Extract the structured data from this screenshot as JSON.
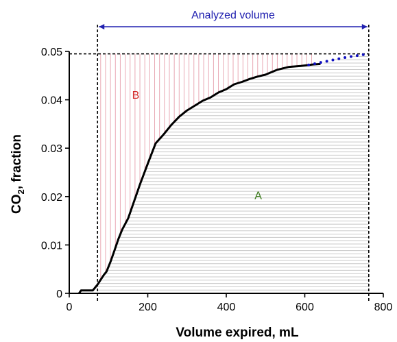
{
  "chart_data": {
    "type": "line",
    "xlabel": "Volume expired, mL",
    "ylabel_main": "CO",
    "ylabel_sub": "2",
    "ylabel_rest": ", fraction",
    "xlim": [
      0,
      800
    ],
    "ylim": [
      0,
      0.05
    ],
    "xticks": [
      0,
      200,
      400,
      600,
      800
    ],
    "xtick_labels": [
      "0",
      "200",
      "400",
      "600",
      "800"
    ],
    "yticks": [
      0,
      0.01,
      0.02,
      0.03,
      0.04,
      0.05
    ],
    "ytick_labels": [
      "0",
      "0.01",
      "0.02",
      "0.03",
      "0.04",
      "0.05"
    ],
    "annotations": {
      "analyzed_volume": "Analyzed volume",
      "region_a": "A",
      "region_b": "B"
    },
    "analyzed_range": [
      72,
      763
    ],
    "plateau_level": 0.0495,
    "colors": {
      "curve": "#000000",
      "extrapolation": "#1010c0",
      "arrow": "#2020b0",
      "region_a_lines": "#c8c8c8",
      "region_b_lines": "#e8a8b4",
      "label_a": "#3a7a1a",
      "label_b": "#d42a2a"
    },
    "series": [
      {
        "style": "solid",
        "x": [
          25,
          30,
          60,
          66,
          72,
          80,
          88,
          95,
          105,
          115,
          125,
          135,
          150,
          165,
          180,
          200,
          220,
          240,
          260,
          280,
          300,
          320,
          340,
          360,
          380,
          400,
          420,
          440,
          460,
          480,
          500,
          530,
          560,
          590,
          620,
          640
        ],
        "y": [
          0.0,
          0.0006,
          0.0006,
          0.0012,
          0.0018,
          0.0028,
          0.0038,
          0.0045,
          0.0065,
          0.0088,
          0.0112,
          0.0132,
          0.0155,
          0.019,
          0.0225,
          0.0268,
          0.031,
          0.0328,
          0.0348,
          0.0365,
          0.0378,
          0.0388,
          0.0398,
          0.0405,
          0.0415,
          0.0422,
          0.0432,
          0.0437,
          0.0443,
          0.0448,
          0.0452,
          0.0462,
          0.0468,
          0.047,
          0.0473,
          0.0474
        ]
      },
      {
        "style": "dotted",
        "x": [
          610,
          640,
          670,
          700,
          730,
          763
        ],
        "y": [
          0.0472,
          0.0477,
          0.0482,
          0.0487,
          0.0491,
          0.0495
        ]
      }
    ]
  }
}
